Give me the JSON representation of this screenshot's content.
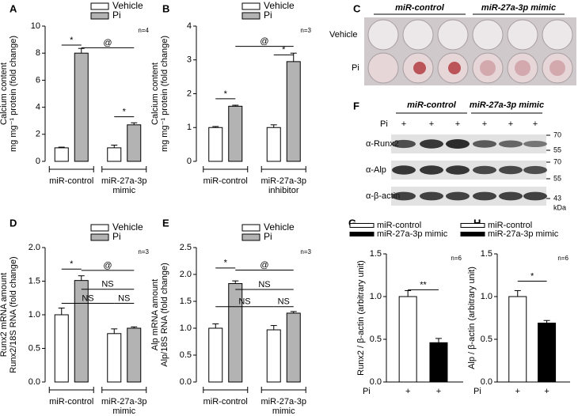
{
  "chart_data": [
    {
      "type": "bar",
      "panel": "A",
      "ylabel": [
        "Calcium content",
        "mg mg⁻¹ protein (fold change)"
      ],
      "categories": [
        [
          "miR-control"
        ],
        [
          "miR-27a-3p",
          "mimic"
        ]
      ],
      "series": [
        {
          "name": "Vehicle",
          "color": "#ffffff",
          "values": [
            1.0,
            1.0
          ],
          "errors": [
            0.05,
            0.2
          ]
        },
        {
          "name": "Pi",
          "color": "#b3b3b3",
          "values": [
            8.0,
            2.7
          ],
          "errors": [
            0.35,
            0.15
          ]
        }
      ],
      "ylim": [
        0,
        10
      ],
      "yticks": [
        0,
        2,
        4,
        6,
        8,
        10
      ],
      "annotations": [
        "*",
        "@",
        "*",
        "n=4"
      ]
    },
    {
      "type": "bar",
      "panel": "B",
      "ylabel": [
        "Calcium content",
        "mg mg⁻¹ protein (fold change)"
      ],
      "categories": [
        [
          "miR-control"
        ],
        [
          "miR-27a-3p",
          "inhibitor"
        ]
      ],
      "series": [
        {
          "name": "Vehicle",
          "color": "#ffffff",
          "values": [
            1.0,
            1.0
          ],
          "errors": [
            0.03,
            0.08
          ]
        },
        {
          "name": "Pi",
          "color": "#b3b3b3",
          "values": [
            1.63,
            2.95
          ],
          "errors": [
            0.03,
            0.25
          ]
        }
      ],
      "ylim": [
        0,
        4
      ],
      "yticks": [
        0,
        1,
        2,
        3,
        4
      ],
      "annotations": [
        "*",
        "@",
        "*",
        "n=3"
      ]
    },
    {
      "type": "bar",
      "panel": "D",
      "ylabel": [
        "Runx2 mRNA amount",
        "Runx2/18S RNA (fold change)"
      ],
      "categories": [
        [
          "miR-control"
        ],
        [
          "miR-27a-3p",
          "mimic"
        ]
      ],
      "series": [
        {
          "name": "Vehicle",
          "color": "#ffffff",
          "values": [
            1.0,
            0.72
          ],
          "errors": [
            0.1,
            0.07
          ]
        },
        {
          "name": "Pi",
          "color": "#b3b3b3",
          "values": [
            1.51,
            0.8
          ],
          "errors": [
            0.07,
            0.02
          ]
        }
      ],
      "ylim": [
        0,
        2
      ],
      "yticks": [
        {
          "value": 0,
          "label": "0.0"
        },
        0.5,
        {
          "value": 1,
          "label": "1.0"
        },
        1.5,
        {
          "value": 2,
          "label": "2.0"
        }
      ],
      "annotations": [
        "*",
        "@",
        "NS",
        "NS",
        "NS",
        "n=3"
      ]
    },
    {
      "type": "bar",
      "panel": "E",
      "ylabel": [
        "Alp mRNA amount",
        "Alp/18S RNA (fold change)"
      ],
      "categories": [
        [
          "miR-control"
        ],
        [
          "miR-27a-3p",
          "mimic"
        ]
      ],
      "series": [
        {
          "name": "Vehicle",
          "color": "#ffffff",
          "values": [
            1.0,
            0.97
          ],
          "errors": [
            0.08,
            0.08
          ]
        },
        {
          "name": "Pi",
          "color": "#b3b3b3",
          "values": [
            1.83,
            1.28
          ],
          "errors": [
            0.05,
            0.03
          ]
        }
      ],
      "ylim": [
        0,
        2.5
      ],
      "yticks": [
        {
          "value": 0,
          "label": "0.0"
        },
        0.5,
        {
          "value": 1,
          "label": "1.0"
        },
        1.5,
        {
          "value": 2,
          "label": "2.0"
        },
        2.5
      ],
      "annotations": [
        "*",
        "@",
        "NS",
        "NS",
        "NS",
        "n=3"
      ]
    },
    {
      "type": "bar",
      "panel": "G",
      "ylabel": [
        "Runx2 / β-actin (arbitrary unit)"
      ],
      "x_row_label": "Pi",
      "categories": [
        "+",
        "+"
      ],
      "series": [
        {
          "name": "miR-control",
          "color": "#ffffff",
          "values": [
            1.0,
            null
          ],
          "errors": [
            0.07,
            null
          ]
        },
        {
          "name": "miR-27a-3p mimic",
          "color": "#000000",
          "values": [
            null,
            0.46
          ],
          "errors": [
            null,
            0.05
          ]
        }
      ],
      "ylim": [
        0,
        1.5
      ],
      "yticks": [
        {
          "value": 0,
          "label": "0.0"
        },
        0.5,
        {
          "value": 1,
          "label": "1.0"
        },
        1.5
      ],
      "annotations": [
        "**",
        "n=6"
      ]
    },
    {
      "type": "bar",
      "panel": "H",
      "ylabel": [
        "Alp / β-actin (arbitrary unit)"
      ],
      "x_row_label": "Pi",
      "categories": [
        "+",
        "+"
      ],
      "series": [
        {
          "name": "miR-control",
          "color": "#ffffff",
          "values": [
            1.0,
            null
          ],
          "errors": [
            0.07,
            null
          ]
        },
        {
          "name": "miR-27a-3p mimic",
          "color": "#000000",
          "values": [
            null,
            0.69
          ],
          "errors": [
            null,
            0.03
          ]
        }
      ],
      "ylim": [
        0,
        1.5
      ],
      "yticks": [
        {
          "value": 0,
          "label": "0.0"
        },
        0.5,
        {
          "value": 1,
          "label": "1.0"
        },
        1.5
      ],
      "annotations": [
        "*",
        "n=6"
      ]
    }
  ],
  "panel_c": {
    "label": "C",
    "groups": [
      "miR-control",
      "miR-27a-3p mimic"
    ],
    "rows": [
      "Vehicle",
      "Pi"
    ]
  },
  "panel_f": {
    "label": "F",
    "groups": [
      "miR-control",
      "miR-27a-3p mimic"
    ],
    "treatment": "Pi",
    "lanes": [
      "+",
      "+",
      "+",
      "+",
      "+",
      "+"
    ],
    "blots": [
      "α-Runx2",
      "α-Alp",
      "α-β-actin"
    ],
    "markers": [
      "70",
      "55",
      "70",
      "55",
      "43"
    ],
    "marker_unit": "kDa"
  }
}
